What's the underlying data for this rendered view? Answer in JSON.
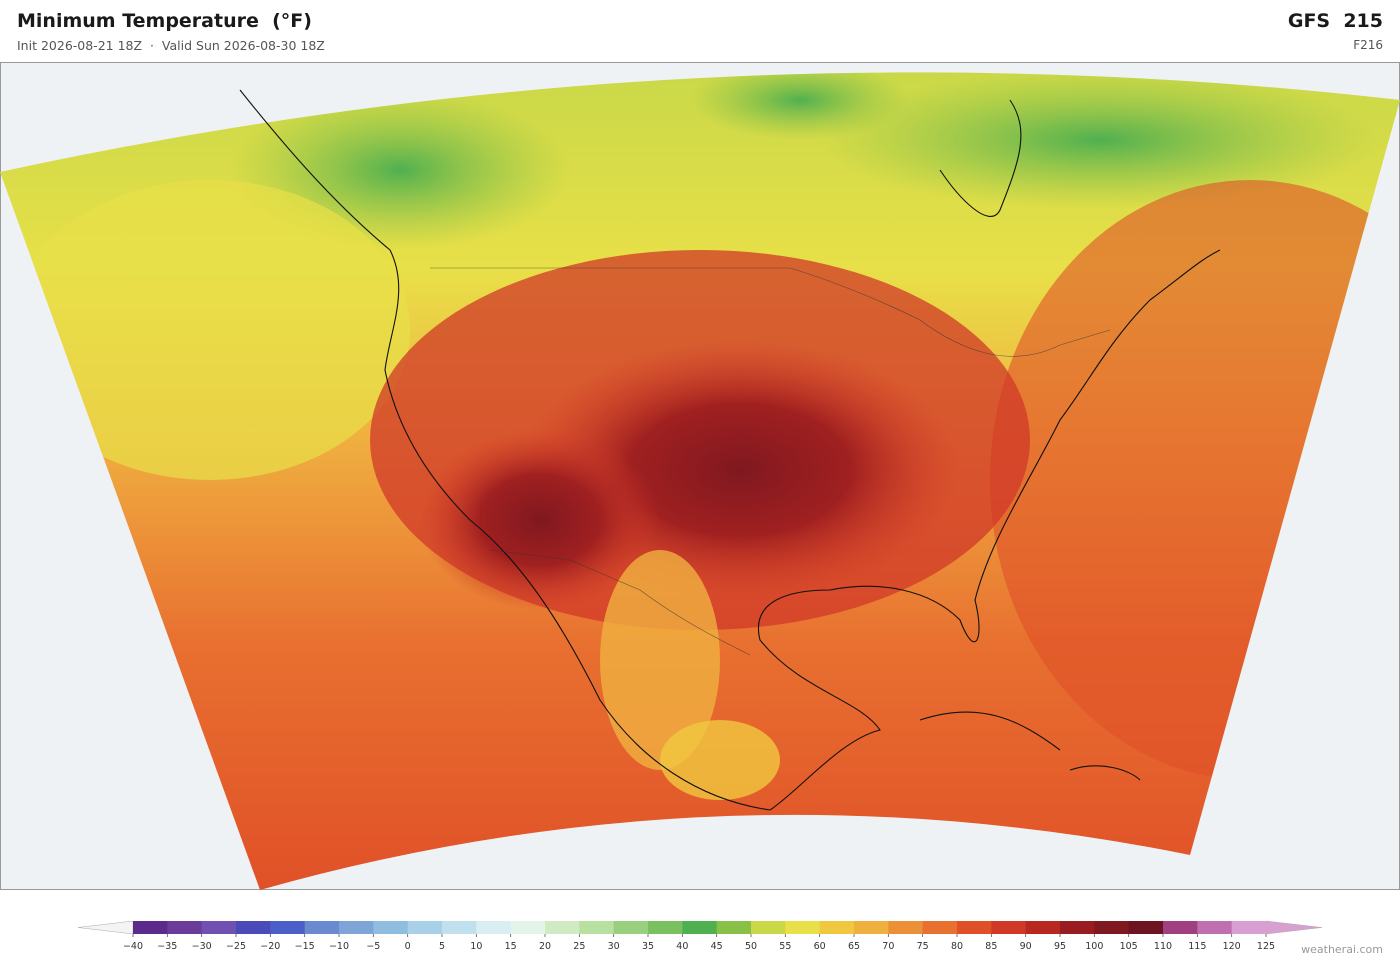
{
  "header": {
    "title": "Minimum Temperature  (°F)",
    "subtitle": "Init 2026-08-21 18Z  ·  Valid Sun 2026-08-30 18Z",
    "model": "GFS  215",
    "forecast_hour": "F216"
  },
  "colorbar": {
    "ticks": [
      {
        "value": -40,
        "label": "−40"
      },
      {
        "value": -35,
        "label": "−35"
      },
      {
        "value": -30,
        "label": "−30"
      },
      {
        "value": -25,
        "label": "−25"
      },
      {
        "value": -20,
        "label": "−20"
      },
      {
        "value": -15,
        "label": "−15"
      },
      {
        "value": -10,
        "label": "−10"
      },
      {
        "value": -5,
        "label": "−5"
      },
      0,
      5,
      10,
      15,
      20,
      25,
      30,
      35,
      40,
      45,
      50,
      55,
      60,
      65,
      70,
      75,
      80,
      85,
      90,
      95,
      100,
      105,
      110,
      115,
      120,
      125
    ],
    "colors": [
      "#5b2a8c",
      "#6a3d9a",
      "#7050b0",
      "#4a4ab8",
      "#4a60c8",
      "#6a8ad0",
      "#7fa5d8",
      "#8fbde0",
      "#a8d0e8",
      "#c0e0ee",
      "#d8eef2",
      "#e4f4ea",
      "#d0ebc4",
      "#b8e0a0",
      "#98d080",
      "#78c060",
      "#50b050",
      "#88c048",
      "#c8d848",
      "#e8e048",
      "#f0c840",
      "#f0b040",
      "#ec9038",
      "#e87030",
      "#e05028",
      "#d03828",
      "#b82820",
      "#981c20",
      "#801820",
      "#6c1420",
      "#a04080",
      "#c070b0",
      "#d8a0d0"
    ]
  },
  "credit": "weatherai.com"
}
